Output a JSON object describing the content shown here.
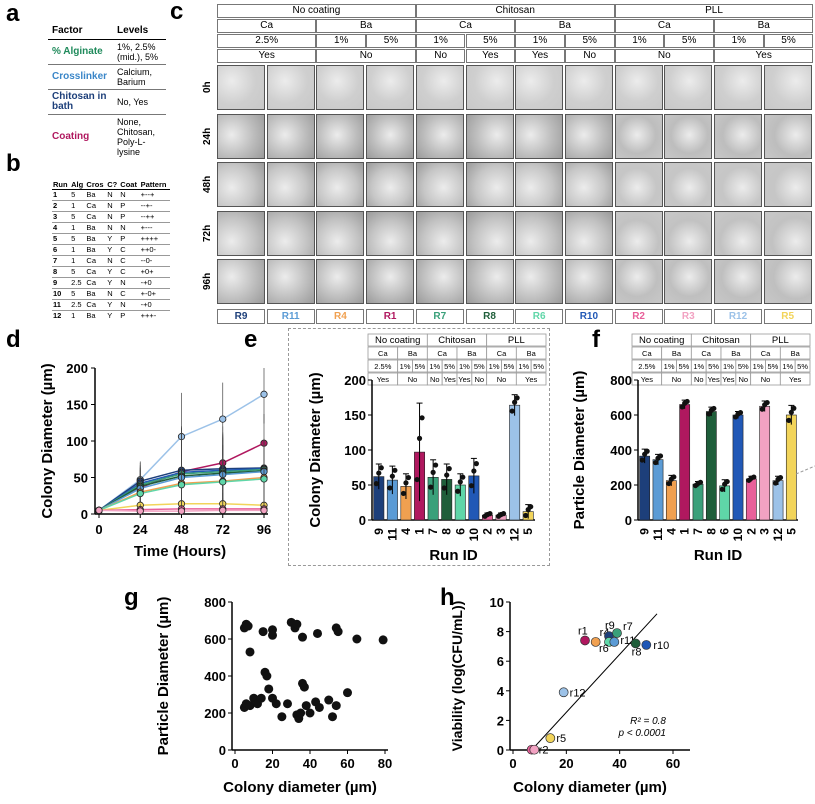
{
  "panel_letters": {
    "a": "a",
    "b": "b",
    "c": "c",
    "d": "d",
    "e": "e",
    "f": "f",
    "g": "g",
    "h": "h"
  },
  "table_a": {
    "headers": [
      "Factor",
      "Levels"
    ],
    "rows": [
      {
        "factor": "% Alginate",
        "levels": "1%, 2.5% (mid.), 5%",
        "color": "#1f8a5b"
      },
      {
        "factor": "Crosslinker",
        "levels": "Calcium, Barium",
        "color": "#3a86c8"
      },
      {
        "factor": "Chitosan in bath",
        "levels": "No, Yes",
        "color": "#1d3f7a"
      },
      {
        "factor": "Coating",
        "levels": "None, Chitosan, Poly-L-lysine",
        "color": "#b0185f"
      }
    ]
  },
  "table_b": {
    "headers": [
      "Run",
      "Alg",
      "Cros",
      "C?",
      "Coat",
      "Pattern"
    ],
    "rows": [
      [
        "1",
        "5",
        "Ba",
        "N",
        "N",
        "+--+"
      ],
      [
        "2",
        "1",
        "Ca",
        "N",
        "P",
        "--+-"
      ],
      [
        "3",
        "5",
        "Ca",
        "N",
        "P",
        "--++"
      ],
      [
        "4",
        "1",
        "Ba",
        "N",
        "N",
        "+---"
      ],
      [
        "5",
        "5",
        "Ba",
        "Y",
        "P",
        "++++"
      ],
      [
        "6",
        "1",
        "Ba",
        "Y",
        "C",
        "++0-"
      ],
      [
        "7",
        "1",
        "Ca",
        "N",
        "C",
        "--0-"
      ],
      [
        "8",
        "5",
        "Ca",
        "Y",
        "C",
        "+0+"
      ],
      [
        "9",
        "2.5",
        "Ca",
        "Y",
        "N",
        "-+0"
      ],
      [
        "10",
        "5",
        "Ba",
        "N",
        "C",
        "+-0+"
      ],
      [
        "11",
        "2.5",
        "Ca",
        "Y",
        "N",
        "-+0"
      ],
      [
        "12",
        "1",
        "Ba",
        "Y",
        "P",
        "+++-"
      ]
    ]
  },
  "panel_c": {
    "coatings": [
      "No coating",
      "Chitosan",
      "PLL"
    ],
    "crosslinkers": [
      "Ca",
      "Ba",
      "Ca",
      "Ba",
      "Ca",
      "Ba"
    ],
    "alginate": [
      "2.5%",
      "1%",
      "5%",
      "1%",
      "5%",
      "1%",
      "5%",
      "1%",
      "5%",
      "1%",
      "5%"
    ],
    "chitosan_bath": [
      "Yes",
      "No",
      "No",
      "Yes",
      "Yes",
      "No",
      "No",
      "Yes"
    ],
    "time_labels": [
      "0h",
      "24h",
      "48h",
      "72h",
      "96h"
    ],
    "runs": [
      {
        "label": "R9",
        "color": "#1d3f7a"
      },
      {
        "label": "R11",
        "color": "#5b9bd5"
      },
      {
        "label": "R4",
        "color": "#f0a050"
      },
      {
        "label": "R1",
        "color": "#b0185f"
      },
      {
        "label": "R7",
        "color": "#3aa07a"
      },
      {
        "label": "R8",
        "color": "#1f5e3a"
      },
      {
        "label": "R6",
        "color": "#5fd6a8"
      },
      {
        "label": "R10",
        "color": "#2158b6"
      },
      {
        "label": "R2",
        "color": "#e8609a"
      },
      {
        "label": "R3",
        "color": "#f2a2c2"
      },
      {
        "label": "R12",
        "color": "#9cc2e8"
      },
      {
        "label": "R5",
        "color": "#f2d45a"
      }
    ]
  },
  "panel_d": {
    "ylabel": "Colony Diameter (µm)",
    "xlabel": "Time (Hours)",
    "yticks": [
      "0",
      "50",
      "100",
      "150",
      "200"
    ],
    "xticks": [
      "0",
      "24",
      "48",
      "72",
      "96"
    ]
  },
  "panel_e": {
    "ylabel": "Colony Diameter (µm)",
    "xlabel": "Run ID",
    "header": {
      "coatings": [
        "No coating",
        "Chitosan",
        "PLL"
      ],
      "cros": [
        "Ca",
        "Ba",
        "Ca",
        "Ba",
        "Ca",
        "Ba"
      ],
      "alg": [
        "2.5%",
        "1%",
        "5%",
        "1%",
        "5%",
        "1%",
        "5%",
        "1%",
        "5%",
        "1%",
        "5%"
      ],
      "bath": [
        "Yes",
        "No",
        "No",
        "Yes",
        "Yes",
        "No",
        "No",
        "Yes"
      ]
    },
    "yticks": [
      "0",
      "50",
      "100",
      "150",
      "200"
    ]
  },
  "panel_f": {
    "ylabel": "Particle Diameter (µm)",
    "xlabel": "Run ID",
    "header": {
      "coatings": [
        "No coating",
        "Chitosan",
        "PLL"
      ],
      "cros": [
        "Ca",
        "Ba",
        "Ca",
        "Ba",
        "Ca",
        "Ba"
      ],
      "alg": [
        "2.5%",
        "1%",
        "5%",
        "1%",
        "5%",
        "1%",
        "5%",
        "1%",
        "5%",
        "1%",
        "5%"
      ],
      "bath": [
        "Yes",
        "No",
        "No",
        "Yes",
        "Yes",
        "No",
        "No",
        "Yes"
      ]
    },
    "yticks": [
      "0",
      "200",
      "400",
      "600",
      "800"
    ]
  },
  "panel_g": {
    "ylabel": "Particle Diameter (µm)",
    "xlabel": "Colony diameter (µm)",
    "yticks": [
      "0",
      "200",
      "400",
      "600",
      "800"
    ],
    "xticks": [
      "0",
      "20",
      "40",
      "60",
      "80"
    ]
  },
  "panel_h": {
    "ylabel": "Viability (log(CFU/mL))",
    "xlabel": "Colony diameter (µm)",
    "yticks": [
      "0",
      "2",
      "4",
      "6",
      "8",
      "10"
    ],
    "xticks": [
      "0",
      "20",
      "40",
      "60"
    ],
    "annotation_r2": "R² = 0.8",
    "annotation_p": "p < 0.0001"
  },
  "chart_data": [
    {
      "panel": "d",
      "type": "line",
      "x": [
        0,
        24,
        48,
        72,
        96
      ],
      "xlabel": "Time (Hours)",
      "ylabel": "Colony Diameter (µm)",
      "ylim": [
        0,
        200
      ],
      "series": [
        {
          "values": [
            5,
            47,
            106,
            130,
            164
          ],
          "color": "#9cc2e8"
        },
        {
          "values": [
            5,
            36,
            58,
            70,
            97
          ],
          "color": "#b0185f"
        },
        {
          "values": [
            5,
            45,
            60,
            62,
            63
          ],
          "color": "#1d3f7a"
        },
        {
          "values": [
            5,
            42,
            57,
            60,
            62
          ],
          "color": "#2158b6"
        },
        {
          "values": [
            5,
            40,
            55,
            58,
            61
          ],
          "color": "#3aa07a"
        },
        {
          "values": [
            5,
            38,
            52,
            56,
            59
          ],
          "color": "#1f5e3a"
        },
        {
          "values": [
            5,
            35,
            50,
            54,
            58
          ],
          "color": "#5b9bd5"
        },
        {
          "values": [
            5,
            30,
            42,
            45,
            50
          ],
          "color": "#f0a050"
        },
        {
          "values": [
            5,
            28,
            40,
            44,
            48
          ],
          "color": "#5fd6a8"
        },
        {
          "values": [
            5,
            12,
            14,
            14,
            12
          ],
          "color": "#f2d45a"
        },
        {
          "values": [
            5,
            6,
            7,
            7,
            7
          ],
          "color": "#e8609a"
        },
        {
          "values": [
            5,
            4,
            4,
            5,
            5
          ],
          "color": "#f2a2c2"
        }
      ]
    },
    {
      "panel": "e",
      "type": "bar",
      "categories": [
        "9",
        "11",
        "4",
        "1",
        "7",
        "8",
        "6",
        "10",
        "2",
        "3",
        "12",
        "5"
      ],
      "values": [
        62,
        57,
        48,
        97,
        61,
        58,
        50,
        63,
        7,
        7,
        164,
        12
      ],
      "errors": [
        18,
        20,
        18,
        70,
        25,
        22,
        16,
        25,
        3,
        3,
        15,
        10
      ],
      "colors": [
        "#1d3f7a",
        "#5b9bd5",
        "#f0a050",
        "#b0185f",
        "#3aa07a",
        "#1f5e3a",
        "#5fd6a8",
        "#2158b6",
        "#e8609a",
        "#f2a2c2",
        "#9cc2e8",
        "#f2d45a"
      ],
      "xlabel": "Run ID",
      "ylabel": "Colony Diameter (µm)",
      "ylim": [
        0,
        200
      ]
    },
    {
      "panel": "f",
      "type": "bar",
      "categories": [
        "9",
        "11",
        "4",
        "1",
        "7",
        "8",
        "6",
        "10",
        "2",
        "3",
        "12",
        "5"
      ],
      "values": [
        365,
        345,
        225,
        660,
        205,
        620,
        195,
        600,
        235,
        650,
        225,
        600
      ],
      "errors": [
        40,
        30,
        30,
        25,
        15,
        25,
        35,
        20,
        15,
        30,
        25,
        55
      ],
      "colors": [
        "#1d3f7a",
        "#5b9bd5",
        "#f0a050",
        "#b0185f",
        "#3aa07a",
        "#1f5e3a",
        "#5fd6a8",
        "#2158b6",
        "#e8609a",
        "#f2a2c2",
        "#9cc2e8",
        "#f2d45a"
      ],
      "xlabel": "Run ID",
      "ylabel": "Particle Diameter (µm)",
      "ylim": [
        0,
        800
      ]
    },
    {
      "panel": "g",
      "type": "scatter",
      "xlabel": "Colony diameter (µm)",
      "ylabel": "Particle Diameter (µm)",
      "xlim": [
        0,
        80
      ],
      "ylim": [
        0,
        800
      ],
      "points": [
        [
          5,
          660
        ],
        [
          6,
          680
        ],
        [
          7,
          670
        ],
        [
          8,
          530
        ],
        [
          15,
          640
        ],
        [
          20,
          650
        ],
        [
          20,
          620
        ],
        [
          30,
          690
        ],
        [
          32,
          660
        ],
        [
          33,
          680
        ],
        [
          36,
          610
        ],
        [
          44,
          630
        ],
        [
          54,
          660
        ],
        [
          55,
          640
        ],
        [
          65,
          600
        ],
        [
          79,
          595
        ],
        [
          5,
          230
        ],
        [
          6,
          250
        ],
        [
          8,
          240
        ],
        [
          10,
          280
        ],
        [
          12,
          250
        ],
        [
          14,
          280
        ],
        [
          16,
          420
        ],
        [
          17,
          400
        ],
        [
          18,
          330
        ],
        [
          20,
          280
        ],
        [
          22,
          250
        ],
        [
          25,
          180
        ],
        [
          28,
          250
        ],
        [
          33,
          190
        ],
        [
          34,
          170
        ],
        [
          35,
          200
        ],
        [
          36,
          360
        ],
        [
          37,
          340
        ],
        [
          38,
          240
        ],
        [
          40,
          200
        ],
        [
          43,
          260
        ],
        [
          45,
          230
        ],
        [
          50,
          270
        ],
        [
          52,
          180
        ],
        [
          54,
          240
        ],
        [
          60,
          310
        ]
      ]
    },
    {
      "panel": "h",
      "type": "scatter",
      "xlabel": "Colony diameter (µm)",
      "ylabel": "Viability (log(CFU/mL))",
      "xlim": [
        0,
        60
      ],
      "ylim": [
        0,
        10
      ],
      "points": [
        {
          "label": "r1",
          "x": 27,
          "y": 7.4,
          "color": "#b0185f"
        },
        {
          "label": "r4",
          "x": 31,
          "y": 7.3,
          "color": "#f0a050"
        },
        {
          "label": "r9",
          "x": 36,
          "y": 7.7,
          "color": "#1d3f7a"
        },
        {
          "label": "r7",
          "x": 39,
          "y": 7.9,
          "color": "#3aa07a"
        },
        {
          "label": "r6",
          "x": 36,
          "y": 7.3,
          "color": "#5fd6a8"
        },
        {
          "label": "r11",
          "x": 38,
          "y": 7.3,
          "color": "#5b9bd5"
        },
        {
          "label": "r8",
          "x": 46,
          "y": 7.2,
          "color": "#1f5e3a"
        },
        {
          "label": "r10",
          "x": 50,
          "y": 7.1,
          "color": "#2158b6"
        },
        {
          "label": "r12",
          "x": 19,
          "y": 3.9,
          "color": "#9cc2e8"
        },
        {
          "label": "r5",
          "x": 14,
          "y": 0.8,
          "color": "#f2d45a"
        },
        {
          "label": "r2",
          "x": 7,
          "y": 0.02,
          "color": "#e8609a"
        },
        {
          "label": "r3",
          "x": 8,
          "y": 0.02,
          "color": "#f2a2c2"
        }
      ],
      "fit_line": [
        [
          7,
          0
        ],
        [
          54,
          9.2
        ]
      ]
    }
  ]
}
